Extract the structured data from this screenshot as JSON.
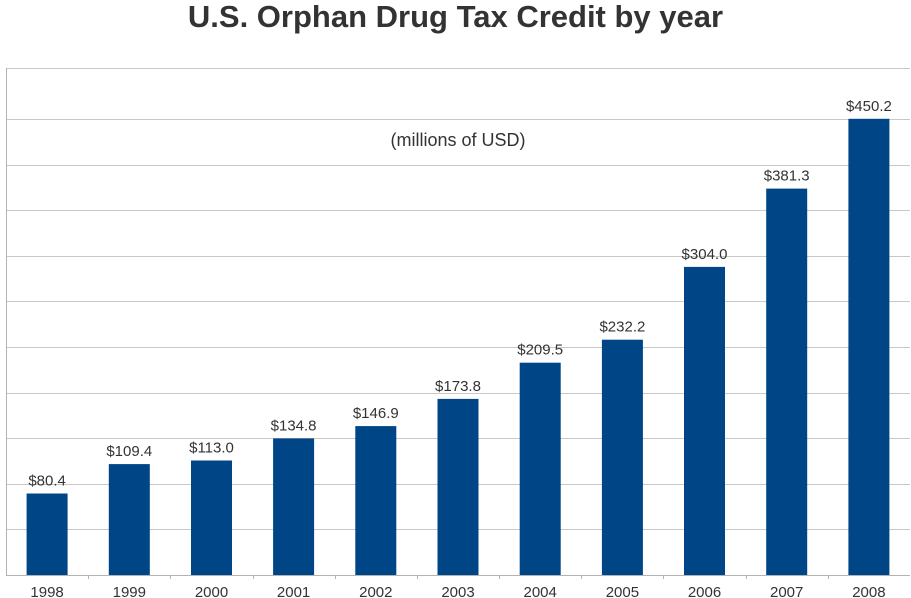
{
  "chart_data": {
    "type": "bar",
    "title": "U.S. Orphan Drug Tax Credit by year",
    "annotation": "(millions of USD)",
    "categories": [
      "1998",
      "1999",
      "2000",
      "2001",
      "2002",
      "2003",
      "2004",
      "2005",
      "2006",
      "2007",
      "2008"
    ],
    "values": [
      80.4,
      109.4,
      113.0,
      134.8,
      146.9,
      173.8,
      209.5,
      232.2,
      304.0,
      381.3,
      450.2
    ],
    "data_labels": [
      "$80.4",
      "$109.4",
      "$113.0",
      "$134.8",
      "$146.9",
      "$173.8",
      "$209.5",
      "$232.2",
      "$304.0",
      "$381.3",
      "$450.2"
    ],
    "xlabel": "",
    "ylabel": "",
    "ylim": [
      0,
      450
    ],
    "y_grid_step": 45,
    "grid": true,
    "legend": "none",
    "bar_color": "#004586"
  }
}
